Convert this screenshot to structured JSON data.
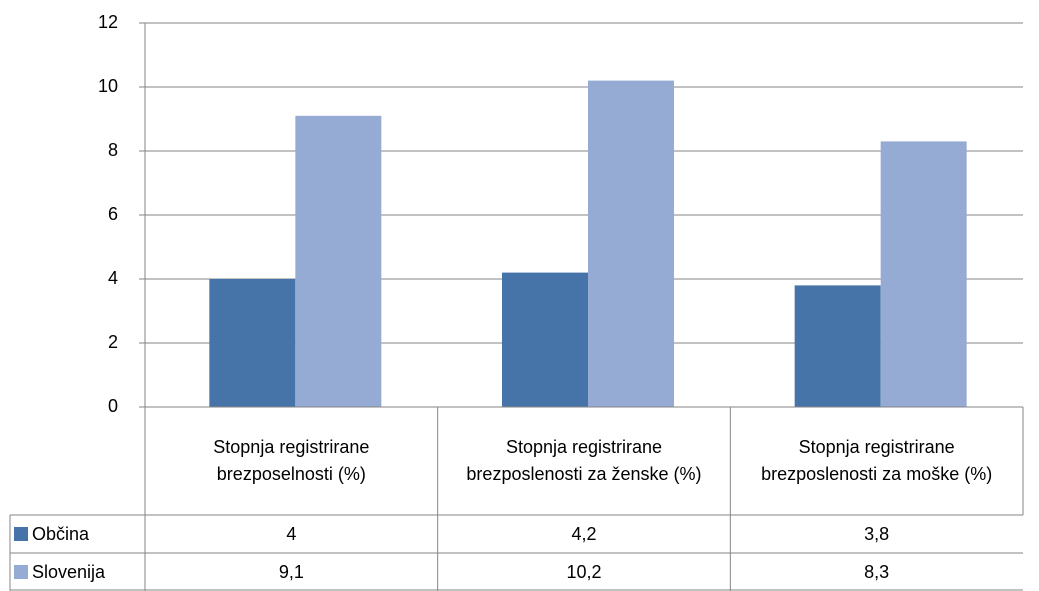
{
  "chart_data": {
    "type": "bar",
    "categories": [
      "Stopnja registrirane brezposelnosti (%)",
      "Stopnja registrirane brezposlenosti za ženske (%)",
      "Stopnja registrirane brezposlenosti za moške (%)"
    ],
    "series": [
      {
        "name": "Občina",
        "color": "#4674a8",
        "values": [
          4,
          4.2,
          3.8
        ],
        "value_labels": [
          "4",
          "4,2",
          "3,8"
        ]
      },
      {
        "name": "Slovenija",
        "color": "#96abd3",
        "values": [
          9.1,
          10.2,
          8.3
        ],
        "value_labels": [
          "9,1",
          "10,2",
          "8,3"
        ]
      }
    ],
    "ylim": [
      0,
      12
    ],
    "yticks": [
      0,
      2,
      4,
      6,
      8,
      10,
      12
    ],
    "grid": true,
    "data_table": true
  }
}
